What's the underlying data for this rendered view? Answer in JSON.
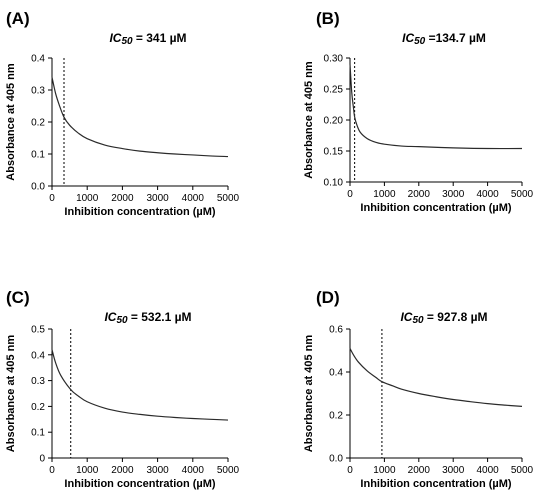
{
  "chart_data": [
    {
      "type": "line",
      "panel_label": "(A)",
      "title_prefix": "IC",
      "title_sub": "50",
      "title_rest": " = 341 µM",
      "xlabel": "Inhibition concentration (µM)",
      "ylabel": "Absorbance at 405 nm",
      "xlim": [
        0,
        5000
      ],
      "ylim": [
        0,
        0.4
      ],
      "xticks": [
        0,
        1000,
        2000,
        3000,
        4000,
        5000
      ],
      "yticks": [
        0.0,
        0.1,
        0.2,
        0.3,
        0.4
      ],
      "ytick_labels": [
        "0.0",
        "0.1",
        "0.2",
        "0.3",
        "0.4"
      ],
      "ic50": 341,
      "curve": {
        "x": [
          0,
          100,
          200,
          341,
          500,
          750,
          1000,
          1500,
          2000,
          2500,
          3000,
          3500,
          4000,
          4500,
          5000
        ],
        "y": [
          0.34,
          0.29,
          0.255,
          0.215,
          0.19,
          0.165,
          0.148,
          0.128,
          0.117,
          0.109,
          0.104,
          0.1,
          0.097,
          0.094,
          0.092
        ]
      },
      "grid": false
    },
    {
      "type": "line",
      "panel_label": "(B)",
      "title_prefix": "IC",
      "title_sub": "50",
      "title_rest": " =134.7 µM",
      "xlabel": "Inhibition concentration (µM)",
      "ylabel": "Absorbance at 405 nm",
      "xlim": [
        0,
        5000
      ],
      "ylim": [
        0.1,
        0.3
      ],
      "xticks": [
        0,
        1000,
        2000,
        3000,
        4000,
        5000
      ],
      "yticks": [
        0.1,
        0.15,
        0.2,
        0.25,
        0.3
      ],
      "ytick_labels": [
        "0.10",
        "0.15",
        "0.20",
        "0.25",
        "0.30"
      ],
      "ic50": 134.7,
      "curve": {
        "x": [
          0,
          50,
          100,
          134.7,
          200,
          300,
          500,
          750,
          1000,
          1500,
          2000,
          3000,
          4000,
          5000
        ],
        "y": [
          0.29,
          0.245,
          0.22,
          0.205,
          0.192,
          0.18,
          0.17,
          0.164,
          0.161,
          0.158,
          0.157,
          0.155,
          0.154,
          0.154
        ]
      },
      "grid": false
    },
    {
      "type": "line",
      "panel_label": "(C)",
      "title_prefix": "IC",
      "title_sub": "50",
      "title_rest": " = 532.1 µM",
      "xlabel": "Inhibition concentration (µM)",
      "ylabel": "Absorbance at 405 nm",
      "xlim": [
        0,
        5000
      ],
      "ylim": [
        0,
        0.5
      ],
      "xticks": [
        0,
        1000,
        2000,
        3000,
        4000,
        5000
      ],
      "yticks": [
        0.0,
        0.1,
        0.2,
        0.3,
        0.4,
        0.5
      ],
      "ytick_labels": [
        "0",
        "0.1",
        "0.2",
        "0.3",
        "0.4",
        "0.5"
      ],
      "ic50": 532.1,
      "curve": {
        "x": [
          0,
          100,
          250,
          532.1,
          750,
          1000,
          1500,
          2000,
          2500,
          3000,
          3500,
          4000,
          4500,
          5000
        ],
        "y": [
          0.42,
          0.37,
          0.32,
          0.265,
          0.24,
          0.218,
          0.193,
          0.178,
          0.169,
          0.162,
          0.157,
          0.153,
          0.15,
          0.147
        ]
      },
      "grid": false
    },
    {
      "type": "line",
      "panel_label": "(D)",
      "title_prefix": "IC",
      "title_sub": "50",
      "title_rest": " = 927.8 µM",
      "xlabel": "Inhibition concentration (µM)",
      "ylabel": "Absorbance at 405 nm",
      "xlim": [
        0,
        5000
      ],
      "ylim": [
        0,
        0.6
      ],
      "xticks": [
        0,
        1000,
        2000,
        3000,
        4000,
        5000
      ],
      "yticks": [
        0.0,
        0.2,
        0.4,
        0.6
      ],
      "ytick_labels": [
        "0.0",
        "0.2",
        "0.4",
        "0.6"
      ],
      "ic50": 927.8,
      "curve": {
        "x": [
          0,
          100,
          250,
          500,
          750,
          927.8,
          1250,
          1500,
          2000,
          2500,
          3000,
          3500,
          4000,
          4500,
          5000
        ],
        "y": [
          0.51,
          0.48,
          0.445,
          0.405,
          0.375,
          0.355,
          0.335,
          0.32,
          0.3,
          0.285,
          0.272,
          0.262,
          0.253,
          0.246,
          0.24
        ]
      },
      "grid": false
    }
  ]
}
